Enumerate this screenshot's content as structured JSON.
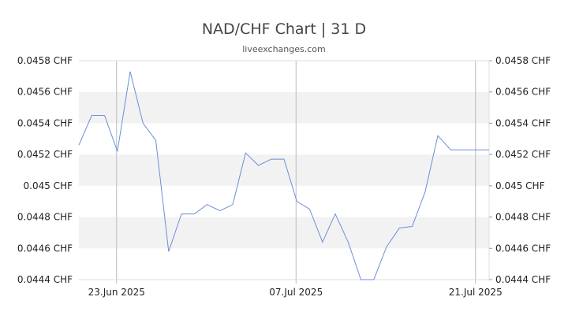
{
  "title": "NAD/CHF Chart | 31 D",
  "source": "liveexchanges.com",
  "colors": {
    "line": "#6b8fd6",
    "band": "#f2f2f2",
    "grid": "#dddddd",
    "vline": "#bbbbbb"
  },
  "chart_data": {
    "type": "line",
    "title": "NAD/CHF Chart | 31 D",
    "ylim": [
      0.0444,
      0.0458
    ],
    "y_ticks": [
      "0.0458 CHF",
      "0.0456 CHF",
      "0.0454 CHF",
      "0.0452 CHF",
      "0.045 CHF",
      "0.0448 CHF",
      "0.0446 CHF",
      "0.0444 CHF"
    ],
    "y_tick_values": [
      0.0458,
      0.0456,
      0.0454,
      0.0452,
      0.045,
      0.0448,
      0.0446,
      0.0444
    ],
    "x_ticks": [
      {
        "label": "23.Jun 2025",
        "index": 3
      },
      {
        "label": "07.Jul 2025",
        "index": 17
      },
      {
        "label": "21.Jul 2025",
        "index": 31
      }
    ],
    "x_count": 33,
    "grid": true,
    "legend": "none",
    "series": [
      {
        "values": [
          0.04526,
          0.04545,
          0.04545,
          0.04522,
          0.04573,
          0.0454,
          0.04529,
          0.04458,
          0.04482,
          0.04482,
          0.04488,
          0.04484,
          0.04488,
          0.04521,
          0.04513,
          0.04517,
          0.04517,
          0.0449,
          0.04485,
          0.04464,
          0.04482,
          0.04464,
          0.0444,
          0.0444,
          0.04461,
          0.04473,
          0.04474,
          0.04496,
          0.04532,
          0.04523,
          0.04523,
          0.04523,
          0.04523
        ]
      }
    ]
  }
}
